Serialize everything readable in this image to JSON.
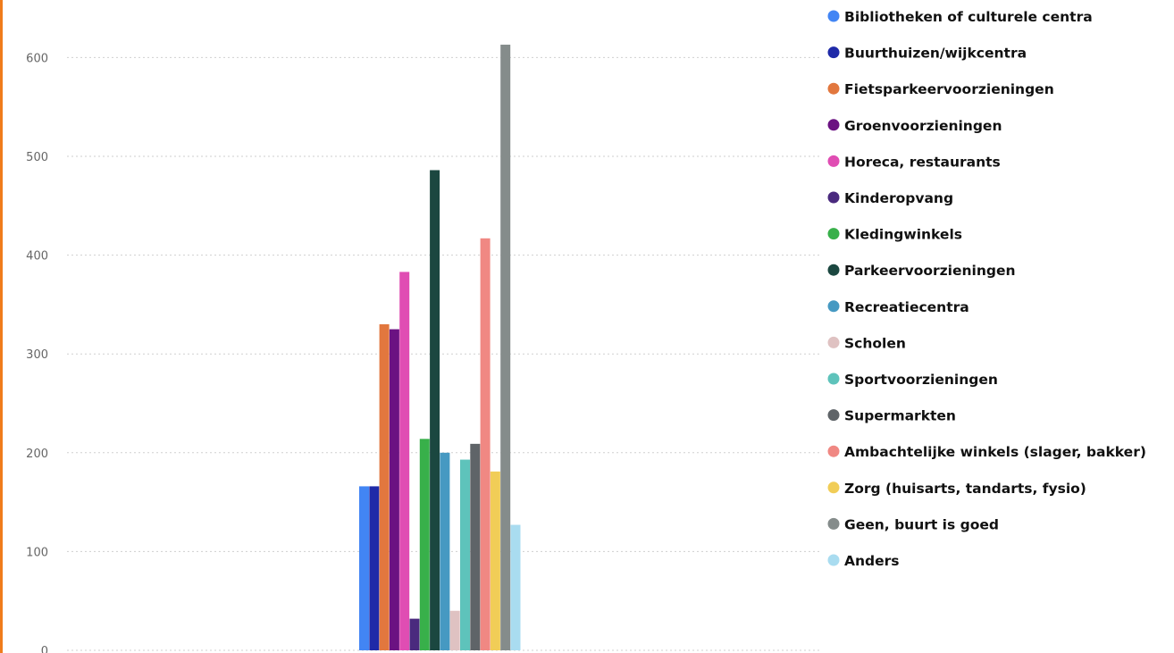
{
  "chart_data": {
    "type": "bar",
    "title": "",
    "xlabel": "",
    "ylabel": "",
    "ylim": [
      0,
      650
    ],
    "yticks": [
      0,
      100,
      200,
      300,
      400,
      500,
      600
    ],
    "grid": true,
    "legend_position": "right",
    "categories": [
      ""
    ],
    "series": [
      {
        "name": "Bibliotheken of culturele centra",
        "color": "#4285f4",
        "values": [
          166
        ]
      },
      {
        "name": "Buurthuizen/wijkcentra",
        "color": "#1f2aa8",
        "values": [
          166
        ]
      },
      {
        "name": "Fietsparkeervoorzieningen",
        "color": "#e2773e",
        "values": [
          330
        ]
      },
      {
        "name": "Groenvoorzieningen",
        "color": "#6b1282",
        "values": [
          325
        ]
      },
      {
        "name": "Horeca, restaurants",
        "color": "#e04db3",
        "values": [
          383
        ]
      },
      {
        "name": "Kinderopvang",
        "color": "#4a2a7e",
        "values": [
          32
        ]
      },
      {
        "name": "Kledingwinkels",
        "color": "#38b04a",
        "values": [
          214
        ]
      },
      {
        "name": "Parkeervoorzieningen",
        "color": "#1b4740",
        "values": [
          486
        ]
      },
      {
        "name": "Recreatiecentra",
        "color": "#4699c2",
        "values": [
          200
        ]
      },
      {
        "name": "Scholen",
        "color": "#dfc2c2",
        "values": [
          40
        ]
      },
      {
        "name": "Sportvoorzieningen",
        "color": "#5ec3bb",
        "values": [
          193
        ]
      },
      {
        "name": "Supermarkten",
        "color": "#5f6468",
        "values": [
          209
        ]
      },
      {
        "name": "Ambachtelijke winkels (slager, bakker)",
        "color": "#f08883",
        "values": [
          417
        ]
      },
      {
        "name": "Zorg (huisarts, tandarts, fysio)",
        "color": "#f1cd57",
        "values": [
          181
        ]
      },
      {
        "name": "Geen, buurt is goed",
        "color": "#858c8b",
        "values": [
          613
        ]
      },
      {
        "name": "Anders",
        "color": "#a9dcf0",
        "values": [
          127
        ]
      }
    ]
  }
}
